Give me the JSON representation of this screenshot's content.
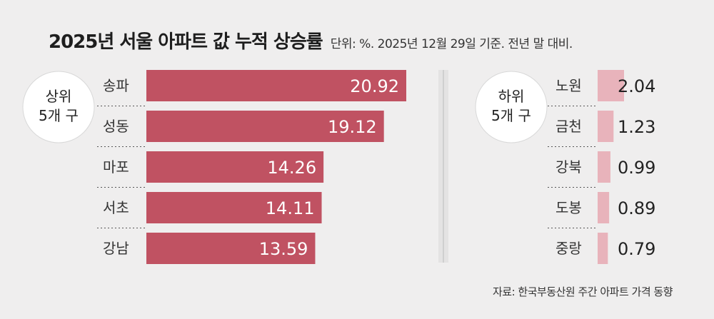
{
  "title": "2025년 서울 아파트 값 누적 상승률",
  "subtitle": "단위: %. 2025년 12월 29일 기준. 전년 말 대비.",
  "source": "자료: 한국부동산원 주간 아파트 가격 동향",
  "colors": {
    "top_bar": "#c05262",
    "bottom_bar": "#e8b3bb",
    "background": "#efeeee"
  },
  "chart_data": [
    {
      "type": "bar",
      "group_label": [
        "상위",
        "5개 구"
      ],
      "categories": [
        "송파",
        "성동",
        "마포",
        "서초",
        "강남"
      ],
      "values": [
        20.92,
        19.12,
        14.26,
        14.11,
        13.59
      ],
      "value_labels": [
        "20.92",
        "19.12",
        "14.26",
        "14.11",
        "13.59"
      ],
      "orientation": "horizontal"
    },
    {
      "type": "bar",
      "group_label": [
        "하위",
        "5개 구"
      ],
      "categories": [
        "노원",
        "금천",
        "강북",
        "도봉",
        "중랑"
      ],
      "values": [
        2.04,
        1.23,
        0.99,
        0.89,
        0.79
      ],
      "value_labels": [
        "2.04",
        "1.23",
        "0.99",
        "0.89",
        "0.79"
      ],
      "orientation": "horizontal"
    }
  ]
}
